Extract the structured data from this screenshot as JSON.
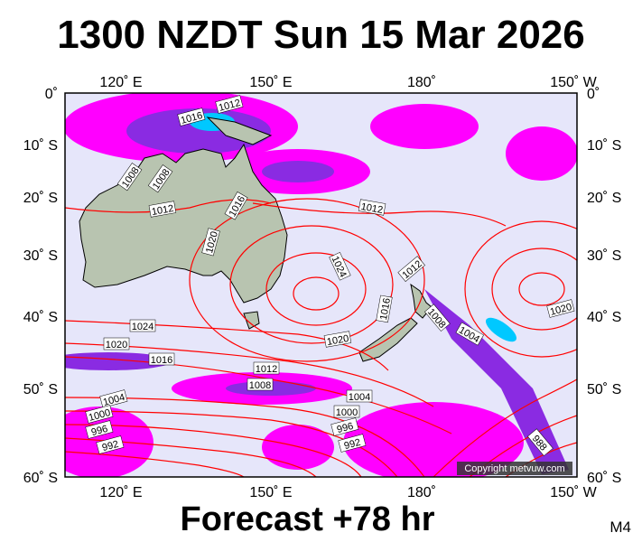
{
  "title": "1300 NZDT Sun 15 Mar 2026",
  "footer": "Forecast +78 hr",
  "chart_code": "M4",
  "copyright": "Copyright metvuw.com",
  "axes": {
    "top_lon": [
      "120˚ E",
      "150˚ E",
      "180˚",
      "150˚ W"
    ],
    "bottom_lon": [
      "120˚ E",
      "150˚ E",
      "180˚",
      "150˚ W"
    ],
    "left_lat": [
      "0˚",
      "10˚ S",
      "20˚ S",
      "30˚ S",
      "40˚ S",
      "50˚ S",
      "60˚ S"
    ],
    "right_lat": [
      "0˚",
      "10˚ S",
      "20˚ S",
      "30˚ S",
      "40˚ S",
      "50˚ S",
      "60˚ S"
    ]
  },
  "isobar_labels": [
    "1016",
    "1012",
    "1008",
    "1008",
    "1012",
    "1016",
    "1020",
    "1024",
    "1012",
    "1012",
    "1016",
    "1008",
    "1004",
    "1020",
    "1024",
    "1020",
    "1016",
    "1020",
    "1012",
    "1008",
    "1004",
    "1000",
    "996",
    "992",
    "1004",
    "1000",
    "996",
    "992",
    "988"
  ],
  "colors": {
    "ocean": "#e6e6fa",
    "isobar": "#ff0000",
    "precip_light": "#ff00ff",
    "precip_mid": "#8a2be2",
    "precip_heavy": "#00c8ff",
    "land": "#b8c4b0"
  }
}
